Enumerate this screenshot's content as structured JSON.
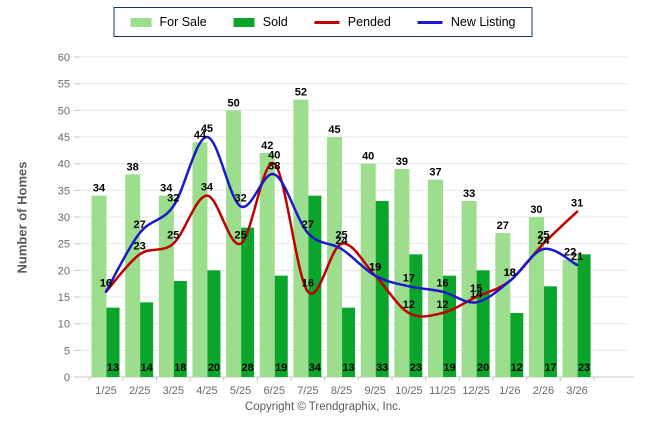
{
  "legend": {
    "items": [
      {
        "label": "For Sale",
        "swatch": "bar",
        "color": "#9CDE8D"
      },
      {
        "label": "Sold",
        "swatch": "bar",
        "color": "#0CA52B"
      },
      {
        "label": "Pended",
        "swatch": "line",
        "color": "#C00000"
      },
      {
        "label": "New Listing",
        "swatch": "line",
        "color": "#1A1ACB"
      }
    ]
  },
  "y_axis_title": "Number of Homes",
  "footer": {
    "text": "Copyright © Trendgraphix, Inc."
  },
  "chart_data": {
    "type": "bar",
    "subtype": "grouped bars with smoothed overlay lines",
    "categories": [
      "1/25",
      "2/25",
      "3/25",
      "4/25",
      "5/25",
      "6/25",
      "7/25",
      "8/25",
      "9/25",
      "10/25",
      "11/25",
      "12/25",
      "1/26",
      "2/26",
      "3/26"
    ],
    "series": [
      {
        "name": "For Sale",
        "type": "bar",
        "color": "#9CDE8D",
        "values": [
          34,
          38,
          34,
          44,
          50,
          42,
          52,
          45,
          40,
          39,
          37,
          33,
          27,
          30,
          22
        ]
      },
      {
        "name": "Sold",
        "type": "bar",
        "color": "#0CA52B",
        "values": [
          13,
          14,
          18,
          20,
          28,
          19,
          34,
          13,
          33,
          23,
          19,
          20,
          12,
          17,
          23
        ]
      },
      {
        "name": "Pended",
        "type": "line",
        "color": "#C00000",
        "values": [
          16,
          23,
          25,
          34,
          25,
          40,
          16,
          25,
          19,
          12,
          12,
          15,
          18,
          25,
          31
        ]
      },
      {
        "name": "New Listing",
        "type": "line",
        "color": "#1A1ACB",
        "values": [
          16,
          27,
          32,
          45,
          32,
          38,
          27,
          24,
          19,
          17,
          16,
          14,
          18,
          24,
          21
        ]
      }
    ],
    "title": "",
    "xlabel": "",
    "ylabel": "Number of Homes",
    "ylim": [
      0,
      60
    ],
    "ytick_step": 5,
    "grid": true,
    "legend_position": "top",
    "value_labels": true
  }
}
